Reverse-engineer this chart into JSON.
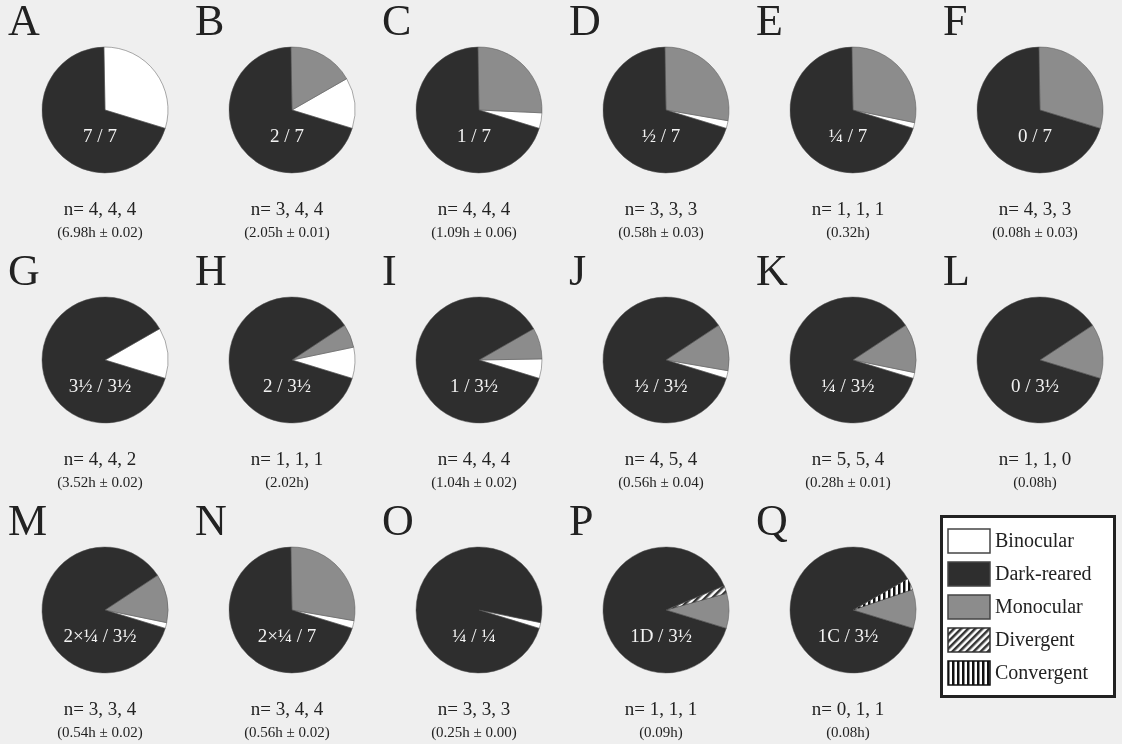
{
  "chart_data": [
    {
      "type": "pie",
      "title": "A",
      "categories": [
        null,
        null,
        null,
        null,
        null
      ],
      "colors": [
        "#ffffff",
        "#2e2e2e",
        "#8c8c8c",
        "#333333",
        "#222222"
      ],
      "values": [
        30,
        70,
        0,
        0,
        0
      ],
      "annotations": [
        "7 / 7",
        "n= 4, 4, 4",
        "(6.98h ± 0.02)"
      ],
      "legend": false
    },
    {
      "type": "pie",
      "title": "B",
      "categories": [
        null,
        null,
        null,
        null,
        null
      ],
      "colors": [
        "#ffffff",
        "#2e2e2e",
        "#8c8c8c",
        "#333333",
        "#222222"
      ],
      "values": [
        13,
        70,
        17,
        0,
        0
      ],
      "annotations": [
        "2 / 7",
        "n= 3, 4, 4",
        "(2.05h ± 0.01)"
      ],
      "legend": false
    },
    {
      "type": "pie",
      "title": "C",
      "categories": [
        null,
        null,
        null,
        null,
        null
      ],
      "colors": [
        "#ffffff",
        "#2e2e2e",
        "#8c8c8c",
        "#333333",
        "#222222"
      ],
      "values": [
        4,
        70,
        26,
        0,
        0
      ],
      "annotations": [
        "1 / 7",
        "n= 4, 4, 4",
        "(1.09h ± 0.06)"
      ],
      "legend": false
    },
    {
      "type": "pie",
      "title": "D",
      "categories": [
        null,
        null,
        null,
        null,
        null
      ],
      "colors": [
        "#ffffff",
        "#2e2e2e",
        "#8c8c8c",
        "#333333",
        "#222222"
      ],
      "values": [
        2,
        70,
        28,
        0,
        0
      ],
      "annotations": [
        "½ / 7",
        "n= 3, 3, 3",
        "(0.58h ± 0.03)"
      ],
      "legend": false
    },
    {
      "type": "pie",
      "title": "E",
      "categories": [
        null,
        null,
        null,
        null,
        null
      ],
      "colors": [
        "#ffffff",
        "#2e2e2e",
        "#8c8c8c",
        "#333333",
        "#222222"
      ],
      "values": [
        1.5,
        70,
        28.5,
        0,
        0
      ],
      "annotations": [
        "¼ / 7",
        "n= 1, 1, 1",
        "(0.32h)"
      ],
      "legend": false
    },
    {
      "type": "pie",
      "title": "F",
      "categories": [
        null,
        null,
        null,
        null,
        null
      ],
      "colors": [
        "#ffffff",
        "#2e2e2e",
        "#8c8c8c",
        "#333333",
        "#222222"
      ],
      "values": [
        0,
        70,
        30,
        0,
        0
      ],
      "annotations": [
        "0 / 7",
        "n= 4, 3, 3",
        "(0.08h ± 0.03)"
      ],
      "legend": false
    },
    {
      "type": "pie",
      "title": "G",
      "categories": [
        null,
        null,
        null,
        null,
        null
      ],
      "colors": [
        "#ffffff",
        "#2e2e2e",
        "#8c8c8c",
        "#333333",
        "#222222"
      ],
      "values": [
        13,
        87,
        0,
        0,
        0
      ],
      "annotations": [
        "3½ / 3½",
        "n= 4, 4, 2",
        "(3.52h ± 0.02)"
      ],
      "legend": false
    },
    {
      "type": "pie",
      "title": "H",
      "categories": [
        null,
        null,
        null,
        null,
        null
      ],
      "colors": [
        "#ffffff",
        "#2e2e2e",
        "#8c8c8c",
        "#333333",
        "#222222"
      ],
      "values": [
        8,
        86,
        6,
        0,
        0
      ],
      "annotations": [
        "2 / 3½",
        "n= 1, 1, 1",
        "(2.02h)"
      ],
      "legend": false
    },
    {
      "type": "pie",
      "title": "I",
      "categories": [
        null,
        null,
        null,
        null,
        null
      ],
      "colors": [
        "#ffffff",
        "#2e2e2e",
        "#8c8c8c",
        "#333333",
        "#222222"
      ],
      "values": [
        5,
        87,
        8,
        0,
        0
      ],
      "annotations": [
        "1 / 3½",
        "n= 4, 4, 4",
        "(1.04h ± 0.02)"
      ],
      "legend": false
    },
    {
      "type": "pie",
      "title": "J",
      "categories": [
        null,
        null,
        null,
        null,
        null
      ],
      "colors": [
        "#ffffff",
        "#2e2e2e",
        "#8c8c8c",
        "#333333",
        "#222222"
      ],
      "values": [
        2,
        86,
        12,
        0,
        0
      ],
      "annotations": [
        "½ / 3½",
        "n= 4, 5, 4",
        "(0.56h ± 0.04)"
      ],
      "legend": false
    },
    {
      "type": "pie",
      "title": "K",
      "categories": [
        null,
        null,
        null,
        null,
        null
      ],
      "colors": [
        "#ffffff",
        "#2e2e2e",
        "#8c8c8c",
        "#333333",
        "#222222"
      ],
      "values": [
        1.5,
        86,
        12.5,
        0,
        0
      ],
      "annotations": [
        "¼ / 3½",
        "n= 5, 5, 4",
        "(0.28h ± 0.01)"
      ],
      "legend": false
    },
    {
      "type": "pie",
      "title": "L",
      "categories": [
        null,
        null,
        null,
        null,
        null
      ],
      "colors": [
        "#ffffff",
        "#2e2e2e",
        "#8c8c8c",
        "#333333",
        "#222222"
      ],
      "values": [
        0,
        86,
        14,
        0,
        0
      ],
      "annotations": [
        "0 / 3½",
        "n= 1, 1, 0",
        "(0.08h)"
      ],
      "legend": false
    },
    {
      "type": "pie",
      "title": "M",
      "categories": [
        null,
        null,
        null,
        null,
        null
      ],
      "colors": [
        "#ffffff",
        "#2e2e2e",
        "#8c8c8c",
        "#333333",
        "#222222"
      ],
      "values": [
        1.5,
        86,
        12.5,
        0,
        0
      ],
      "annotations": [
        "2×¼ / 3½",
        "n= 3, 3, 4",
        "(0.54h ± 0.02)"
      ],
      "legend": false
    },
    {
      "type": "pie",
      "title": "N",
      "categories": [
        null,
        null,
        null,
        null,
        null
      ],
      "colors": [
        "#ffffff",
        "#2e2e2e",
        "#8c8c8c",
        "#333333",
        "#222222"
      ],
      "values": [
        2,
        70,
        28,
        0,
        0
      ],
      "annotations": [
        "2×¼ / 7",
        "n= 3, 4, 4",
        "(0.56h ± 0.02)"
      ],
      "legend": false
    },
    {
      "type": "pie",
      "title": "O",
      "categories": [
        null,
        null,
        null,
        null,
        null
      ],
      "colors": [
        "#ffffff",
        "#2e2e2e",
        "#8c8c8c",
        "#333333",
        "#222222"
      ],
      "values": [
        1.5,
        98.5,
        0,
        0,
        0
      ],
      "annotations": [
        "¼ / ¼",
        "n= 3, 3, 3",
        "(0.25h ± 0.00)"
      ],
      "legend": false
    },
    {
      "type": "pie",
      "title": "P",
      "categories": [
        null,
        null,
        null,
        null,
        null
      ],
      "colors": [
        "#ffffff",
        "#2e2e2e",
        "#8c8c8c",
        "#333333",
        "#222222"
      ],
      "values": [
        0,
        89,
        9,
        2,
        0
      ],
      "annotations": [
        "1D / 3½",
        "n= 1, 1, 1",
        "(0.09h)"
      ],
      "legend": false
    },
    {
      "type": "pie",
      "title": "Q",
      "categories": [
        "Binocular",
        "Dark-reared",
        "Monocular",
        "Divergent",
        "Convergent"
      ],
      "colors": [
        "#ffffff",
        "#2e2e2e",
        "#8c8c8c",
        "#333333",
        "#111111"
      ],
      "values": [
        0,
        87,
        10,
        0,
        3
      ],
      "annotations": [
        "1C / 3½",
        "n= 0, 1, 1",
        "(0.08h)"
      ],
      "legend": "right"
    }
  ]
}
